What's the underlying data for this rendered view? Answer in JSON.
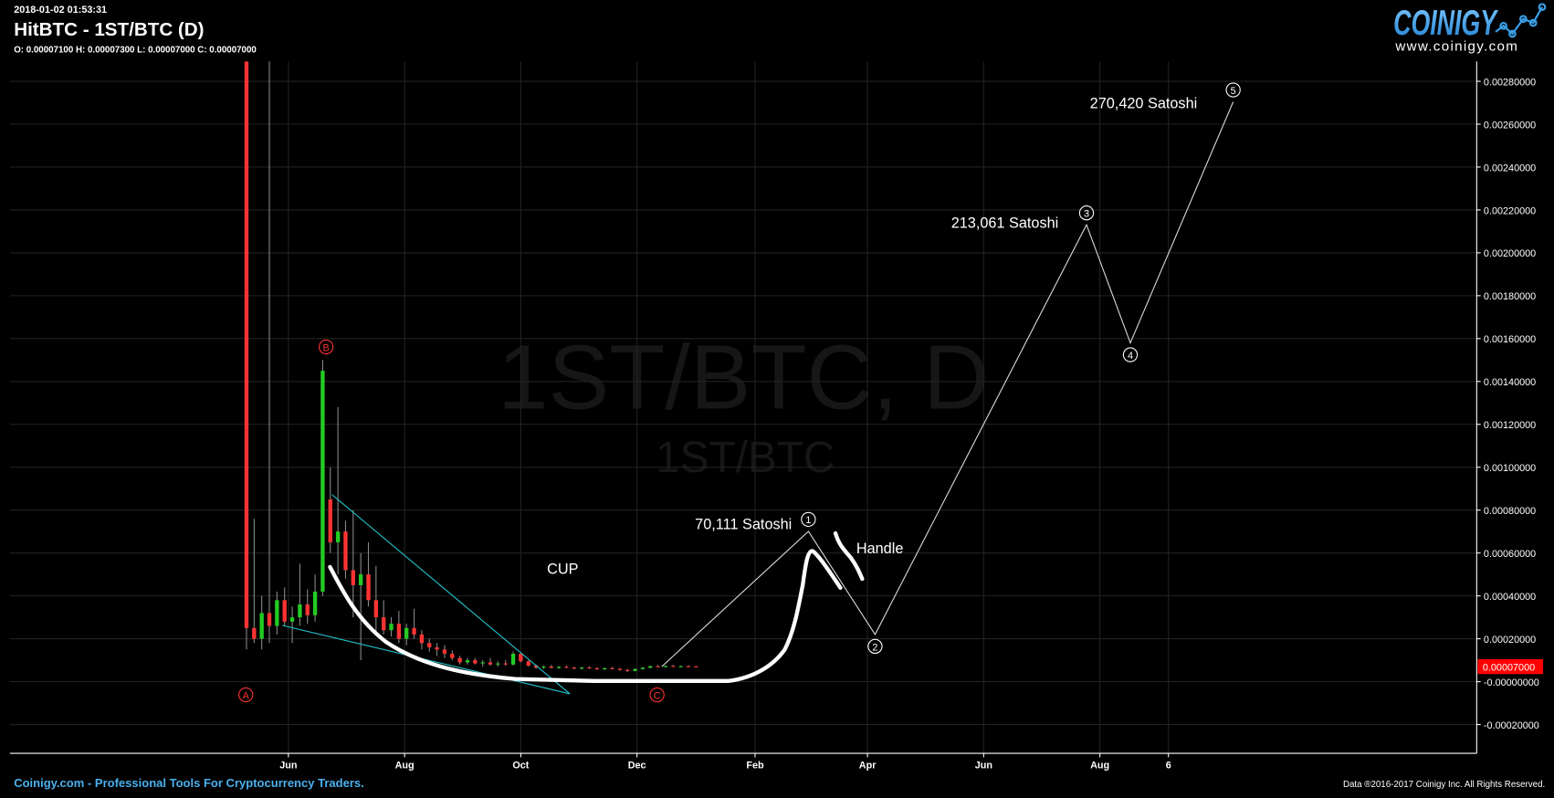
{
  "header": {
    "timestamp": "2018-01-02 01:53:31",
    "title": "HitBTC - 1ST/BTC (D)",
    "ohlc": "O: 0.00007100 H: 0.00007300 L: 0.00007000 C: 0.00007000"
  },
  "logo": {
    "brand": "COINIGY",
    "url": "www.coinigy.com"
  },
  "watermark": {
    "main": "1ST/BTC, D",
    "sub": "1ST/BTC"
  },
  "footer": {
    "left": "Coinigy.com - Professional Tools For Cryptocurrency Traders.",
    "right": "Data ®2016-2017 Coinigy Inc. All Rights Reserved."
  },
  "colors": {
    "up": "#22cc22",
    "down": "#ff3333",
    "wick": "#888888",
    "trend": "#22c6d0",
    "brand": "#3aa0e8",
    "price_badge": "#ff0000"
  },
  "chart_data": {
    "type": "candlestick",
    "title": "HitBTC - 1ST/BTC (D)",
    "price_unit": "satoshi",
    "ylim": [
      -0.00024,
      0.0029
    ],
    "y_ticks": [
      "0.00280000",
      "0.00260000",
      "0.00240000",
      "0.00220000",
      "0.00200000",
      "0.00180000",
      "0.00160000",
      "0.00140000",
      "0.00120000",
      "0.00100000",
      "0.00080000",
      "0.00060000",
      "0.00040000",
      "0.00020000",
      "-0.00000000",
      "-0.00020000"
    ],
    "y_tick_values": [
      0.0028,
      0.0026,
      0.0024,
      0.0022,
      0.002,
      0.0018,
      0.0016,
      0.0014,
      0.0012,
      0.001,
      0.0008,
      0.0006,
      0.0004,
      0.0002,
      0,
      -0.0002
    ],
    "x_ticks": [
      {
        "label": "Jun",
        "date": "2017-06-01"
      },
      {
        "label": "Aug",
        "date": "2017-08-01"
      },
      {
        "label": "Oct",
        "date": "2017-10-01"
      },
      {
        "label": "Dec",
        "date": "2017-12-01"
      },
      {
        "label": "Feb",
        "date": "2018-02-01"
      },
      {
        "label": "Apr",
        "date": "2018-04-01"
      },
      {
        "label": "Jun",
        "date": "2018-06-01"
      },
      {
        "label": "Aug",
        "date": "2018-08-01"
      },
      {
        "label": "6",
        "date": "2018-09-06"
      }
    ],
    "last_price": "0.00007000",
    "last_price_value": 7e-05,
    "candle_start": "2017-05-10",
    "candle_interval_days": 4,
    "candles_ohlc": [
      [
        300000,
        300000,
        15000,
        25000
      ],
      [
        25000,
        76000,
        18000,
        20000
      ],
      [
        20000,
        40000,
        15000,
        32000
      ],
      [
        32000,
        290000,
        18000,
        26000
      ],
      [
        26000,
        42000,
        22000,
        38000
      ],
      [
        38000,
        44000,
        26000,
        28000
      ],
      [
        28000,
        35000,
        18000,
        30000
      ],
      [
        30000,
        55000,
        26000,
        36000
      ],
      [
        36000,
        43000,
        27000,
        31000
      ],
      [
        31000,
        50000,
        28000,
        42000
      ],
      [
        42000,
        150000,
        40000,
        145000
      ],
      [
        85000,
        100000,
        60000,
        65000
      ],
      [
        65000,
        128000,
        50000,
        70000
      ],
      [
        70000,
        75000,
        48000,
        52000
      ],
      [
        52000,
        80000,
        30000,
        45000
      ],
      [
        45000,
        60000,
        10000,
        50000
      ],
      [
        50000,
        65000,
        35000,
        38000
      ],
      [
        38000,
        54000,
        22000,
        30000
      ],
      [
        30000,
        38000,
        22000,
        24000
      ],
      [
        24000,
        30000,
        21000,
        27000
      ],
      [
        27000,
        33000,
        18000,
        20000
      ],
      [
        20000,
        27000,
        17000,
        25000
      ],
      [
        25000,
        34000,
        20000,
        22000
      ],
      [
        22000,
        24000,
        15000,
        18000
      ],
      [
        18000,
        20000,
        14000,
        16000
      ],
      [
        16000,
        18000,
        12000,
        15000
      ],
      [
        15000,
        17000,
        11000,
        13000
      ],
      [
        13000,
        14500,
        10000,
        11000
      ],
      [
        11000,
        12000,
        8000,
        9000
      ],
      [
        9000,
        11000,
        8000,
        10000
      ],
      [
        10000,
        11000,
        8000,
        8500
      ],
      [
        8500,
        10000,
        7000,
        9000
      ],
      [
        9000,
        11000,
        7500,
        8000
      ],
      [
        8000,
        9500,
        7000,
        8500
      ],
      [
        8500,
        10000,
        7500,
        8000
      ],
      [
        8000,
        14000,
        7500,
        13000
      ],
      [
        13000,
        13500,
        9000,
        9500
      ],
      [
        9500,
        10000,
        7000,
        7500
      ],
      [
        7500,
        8000,
        6000,
        6500
      ],
      [
        6500,
        7500,
        6000,
        7000
      ],
      [
        7000,
        7800,
        6200,
        6400
      ],
      [
        6400,
        7200,
        6000,
        6900
      ],
      [
        6900,
        7500,
        6300,
        6500
      ],
      [
        6500,
        7000,
        5800,
        6100
      ],
      [
        6100,
        6800,
        5600,
        6600
      ],
      [
        6600,
        7200,
        6000,
        6200
      ],
      [
        6200,
        6700,
        5500,
        5800
      ],
      [
        5800,
        6500,
        5400,
        6300
      ],
      [
        6300,
        6900,
        5800,
        6000
      ],
      [
        6000,
        6400,
        5200,
        5500
      ],
      [
        5500,
        6000,
        4500,
        5000
      ],
      [
        5000,
        6200,
        4800,
        5900
      ],
      [
        5900,
        6800,
        5600,
        6500
      ],
      [
        6500,
        7500,
        6200,
        7200
      ],
      [
        7200,
        7800,
        6800,
        7000
      ],
      [
        7000,
        7600,
        6600,
        7300
      ],
      [
        7300,
        7800,
        6900,
        7100
      ],
      [
        7100,
        7500,
        6800,
        7200
      ],
      [
        7200,
        7600,
        6900,
        7100
      ],
      [
        7100,
        7300,
        7000,
        7000
      ]
    ],
    "wave_points": [
      {
        "label": "",
        "date": "2017-12-14",
        "price": 7e-05
      },
      {
        "label": "1",
        "date": "2018-03-01",
        "price": 0.00070111
      },
      {
        "label": "2",
        "date": "2018-04-05",
        "price": 0.00022
      },
      {
        "label": "3",
        "date": "2018-07-25",
        "price": 0.00213061
      },
      {
        "label": "4",
        "date": "2018-08-17",
        "price": 0.00158
      },
      {
        "label": "5",
        "date": "2018-10-10",
        "price": 0.0027042
      }
    ],
    "markers": [
      "A",
      "B",
      "C"
    ],
    "annotations": {
      "wave1": "70,111 Satoshi",
      "wave3": "213,061 Satoshi",
      "wave5": "270,420 Satoshi",
      "cup": "CUP",
      "handle": "Handle"
    }
  }
}
